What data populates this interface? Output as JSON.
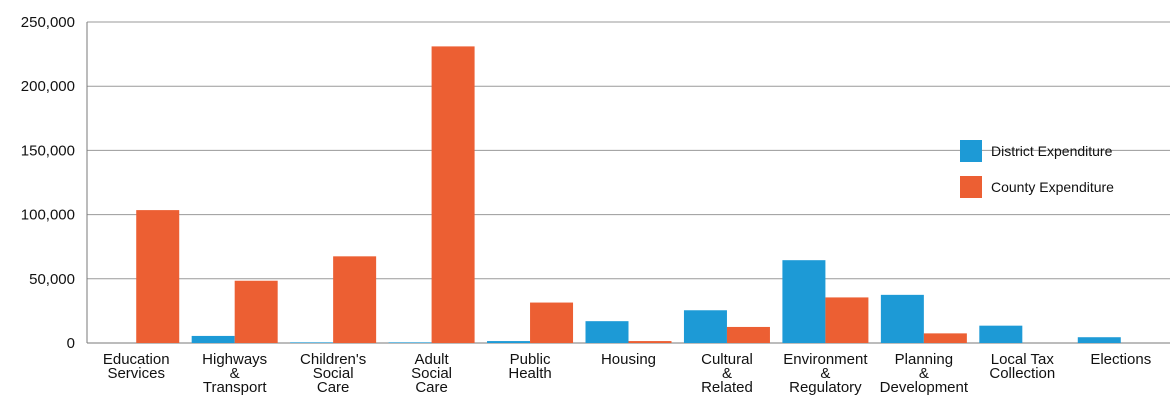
{
  "chart_data": {
    "type": "bar",
    "title": "",
    "xlabel": "",
    "ylabel": "",
    "ylim": [
      0,
      250000
    ],
    "yticks": [
      0,
      50000,
      100000,
      150000,
      200000,
      250000
    ],
    "ytick_labels": [
      "0",
      "50,000",
      "100,000",
      "150,000",
      "200,000",
      "250,000"
    ],
    "grid": true,
    "legend": "right",
    "categories": [
      [
        "Education",
        "Services"
      ],
      [
        "Highways",
        "&",
        "Transport"
      ],
      [
        "Children's",
        "Social",
        "Care"
      ],
      [
        "Adult",
        "Social",
        "Care"
      ],
      [
        "Public",
        "Health"
      ],
      [
        "Housing"
      ],
      [
        "Cultural",
        "&",
        "Related"
      ],
      [
        "Environment",
        "&",
        "Regulatory"
      ],
      [
        "Planning",
        "&",
        "Development"
      ],
      [
        "Local Tax",
        "Collection"
      ],
      [
        "Elections"
      ]
    ],
    "series": [
      {
        "name": "District Expenditure",
        "color": "#1d9ad6",
        "values": [
          0,
          5500,
          500,
          500,
          1500,
          17000,
          25500,
          64500,
          37500,
          13500,
          4500
        ]
      },
      {
        "name": "County Expenditure",
        "color": "#ec5f33",
        "values": [
          103500,
          48500,
          67500,
          231000,
          31500,
          1500,
          12500,
          35500,
          7500,
          0,
          0
        ]
      }
    ]
  }
}
